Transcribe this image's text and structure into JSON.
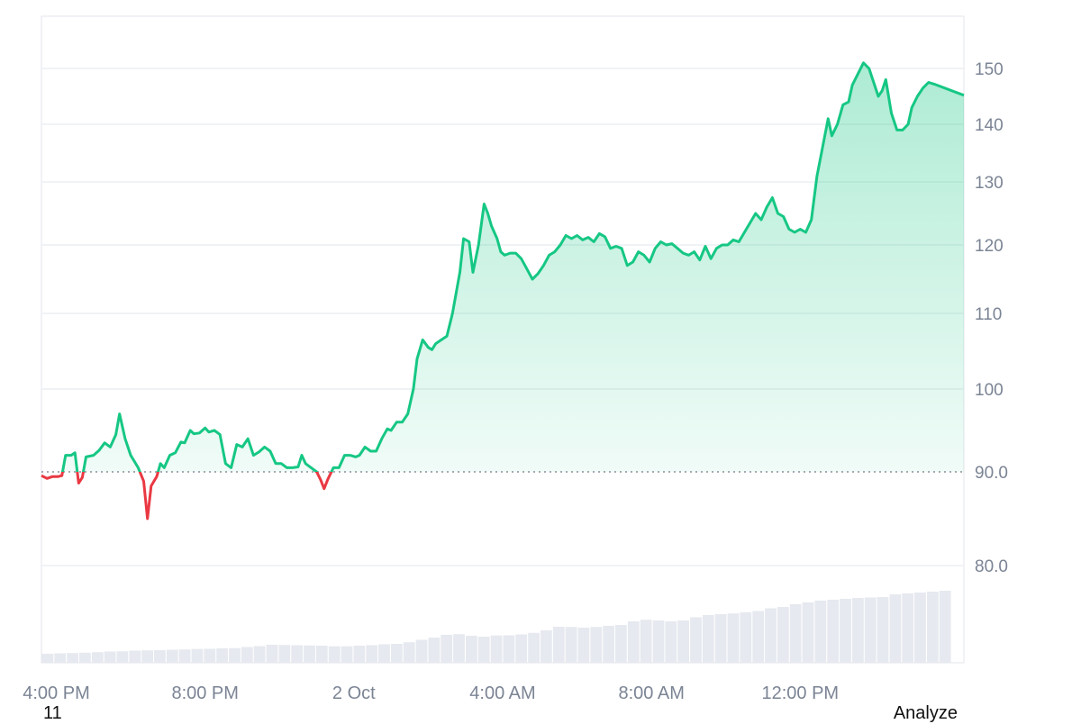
{
  "chart_data": {
    "type": "area",
    "reference_value": 90,
    "y_ticks": [
      "150",
      "140",
      "130",
      "120",
      "110",
      "100",
      "90.0",
      "80.0"
    ],
    "y_tick_values": [
      150,
      140,
      130,
      120,
      110,
      100,
      90,
      80
    ],
    "x_ticks": [
      "4:00 PM",
      "8:00 PM",
      "2 Oct",
      "4:00 AM",
      "8:00 AM",
      "12:00 PM"
    ],
    "x_tick_hours": [
      16,
      20,
      24,
      28,
      32,
      36
    ],
    "x_range_hours": [
      15.6,
      40.4
    ],
    "series": [
      {
        "price_points": [
          [
            15.6,
            89.6
          ],
          [
            15.75,
            89.3
          ],
          [
            15.9,
            89.5
          ],
          [
            16.05,
            89.5
          ],
          [
            16.15,
            89.6
          ],
          [
            16.25,
            92
          ],
          [
            16.4,
            92
          ],
          [
            16.5,
            92.3
          ],
          [
            16.6,
            88.8
          ],
          [
            16.7,
            89.4
          ],
          [
            16.8,
            91.8
          ],
          [
            17.0,
            92
          ],
          [
            17.15,
            92.6
          ],
          [
            17.3,
            93.5
          ],
          [
            17.45,
            93
          ],
          [
            17.6,
            94.5
          ],
          [
            17.7,
            97
          ],
          [
            17.85,
            94
          ],
          [
            18.0,
            92
          ],
          [
            18.2,
            90.5
          ],
          [
            18.35,
            89
          ],
          [
            18.45,
            85
          ],
          [
            18.55,
            88.5
          ],
          [
            18.7,
            89.5
          ],
          [
            18.8,
            91
          ],
          [
            18.9,
            90.5
          ],
          [
            19.05,
            92
          ],
          [
            19.2,
            92.3
          ],
          [
            19.35,
            93.6
          ],
          [
            19.45,
            93.5
          ],
          [
            19.6,
            95
          ],
          [
            19.7,
            94.6
          ],
          [
            19.85,
            94.7
          ],
          [
            20.0,
            95.3
          ],
          [
            20.1,
            94.8
          ],
          [
            20.25,
            95
          ],
          [
            20.4,
            94.5
          ],
          [
            20.55,
            91
          ],
          [
            20.7,
            90.5
          ],
          [
            20.85,
            93.3
          ],
          [
            21.0,
            93
          ],
          [
            21.15,
            94
          ],
          [
            21.3,
            92
          ],
          [
            21.45,
            92.4
          ],
          [
            21.6,
            93
          ],
          [
            21.75,
            92.5
          ],
          [
            21.9,
            91
          ],
          [
            22.05,
            91
          ],
          [
            22.2,
            90.5
          ],
          [
            22.35,
            90.5
          ],
          [
            22.5,
            90.6
          ],
          [
            22.6,
            92
          ],
          [
            22.7,
            91
          ],
          [
            22.85,
            90.5
          ],
          [
            23.0,
            90
          ],
          [
            23.1,
            89.2
          ],
          [
            23.2,
            88.2
          ],
          [
            23.3,
            89.2
          ],
          [
            23.45,
            90.5
          ],
          [
            23.6,
            90.5
          ],
          [
            23.75,
            92
          ],
          [
            23.9,
            92
          ],
          [
            24.05,
            91.8
          ],
          [
            24.15,
            92
          ],
          [
            24.3,
            93
          ],
          [
            24.45,
            92.5
          ],
          [
            24.6,
            92.5
          ],
          [
            24.75,
            94
          ],
          [
            24.9,
            95.2
          ],
          [
            25.0,
            95
          ],
          [
            25.15,
            96
          ],
          [
            25.3,
            96
          ],
          [
            25.45,
            97
          ],
          [
            25.6,
            100
          ],
          [
            25.7,
            104
          ],
          [
            25.85,
            106.5
          ],
          [
            26.0,
            105.5
          ],
          [
            26.1,
            105.2
          ],
          [
            26.2,
            106
          ],
          [
            26.35,
            106.5
          ],
          [
            26.5,
            107
          ],
          [
            26.65,
            110
          ],
          [
            26.75,
            113
          ],
          [
            26.85,
            116
          ],
          [
            26.95,
            121
          ],
          [
            27.1,
            120.5
          ],
          [
            27.2,
            116
          ],
          [
            27.35,
            120
          ],
          [
            27.5,
            126.5
          ],
          [
            27.6,
            125
          ],
          [
            27.7,
            123
          ],
          [
            27.85,
            121
          ],
          [
            27.95,
            119
          ],
          [
            28.05,
            118.5
          ],
          [
            28.2,
            118.8
          ],
          [
            28.35,
            118.8
          ],
          [
            28.5,
            118
          ],
          [
            28.6,
            117
          ],
          [
            28.7,
            116
          ],
          [
            28.8,
            115
          ],
          [
            28.95,
            115.8
          ],
          [
            29.1,
            117
          ],
          [
            29.25,
            118.5
          ],
          [
            29.4,
            119
          ],
          [
            29.55,
            120
          ],
          [
            29.7,
            121.5
          ],
          [
            29.85,
            121
          ],
          [
            30.0,
            121.5
          ],
          [
            30.15,
            120.8
          ],
          [
            30.3,
            121.2
          ],
          [
            30.45,
            120.5
          ],
          [
            30.6,
            121.8
          ],
          [
            30.75,
            121.3
          ],
          [
            30.9,
            119.5
          ],
          [
            31.05,
            119.8
          ],
          [
            31.2,
            119.5
          ],
          [
            31.35,
            117
          ],
          [
            31.5,
            117.5
          ],
          [
            31.65,
            119
          ],
          [
            31.8,
            118.5
          ],
          [
            31.95,
            117.5
          ],
          [
            32.1,
            119.5
          ],
          [
            32.25,
            120.5
          ],
          [
            32.4,
            120
          ],
          [
            32.55,
            120.2
          ],
          [
            32.7,
            119.5
          ],
          [
            32.85,
            118.8
          ],
          [
            33.0,
            118.5
          ],
          [
            33.15,
            119
          ],
          [
            33.3,
            117.8
          ],
          [
            33.45,
            119.8
          ],
          [
            33.6,
            118
          ],
          [
            33.75,
            119.5
          ],
          [
            33.9,
            120
          ],
          [
            34.05,
            120
          ],
          [
            34.2,
            120.8
          ],
          [
            34.35,
            120.5
          ],
          [
            34.5,
            122
          ],
          [
            34.65,
            123.5
          ],
          [
            34.8,
            125
          ],
          [
            34.95,
            124
          ],
          [
            35.1,
            126
          ],
          [
            35.25,
            127.5
          ],
          [
            35.4,
            125
          ],
          [
            35.55,
            124.5
          ],
          [
            35.7,
            122.5
          ],
          [
            35.85,
            122
          ],
          [
            36.0,
            122.5
          ],
          [
            36.15,
            122
          ],
          [
            36.3,
            124
          ],
          [
            36.45,
            131
          ],
          [
            36.6,
            136
          ],
          [
            36.75,
            141
          ],
          [
            36.85,
            138
          ],
          [
            37.0,
            140
          ],
          [
            37.15,
            143.5
          ],
          [
            37.3,
            144
          ],
          [
            37.4,
            147
          ],
          [
            37.55,
            149
          ],
          [
            37.7,
            151
          ],
          [
            37.85,
            150
          ],
          [
            38.0,
            147
          ],
          [
            38.1,
            145
          ],
          [
            38.2,
            146
          ],
          [
            38.3,
            148
          ],
          [
            38.45,
            142
          ],
          [
            38.6,
            139
          ],
          [
            38.75,
            139
          ],
          [
            38.9,
            140
          ],
          [
            39.0,
            143
          ],
          [
            39.15,
            145
          ],
          [
            39.3,
            146.5
          ],
          [
            39.45,
            147.5
          ],
          [
            39.6,
            147.2
          ],
          [
            40.4,
            145.2
          ]
        ]
      }
    ],
    "volume": [
      0.1,
      0.105,
      0.108,
      0.112,
      0.118,
      0.125,
      0.128,
      0.135,
      0.138,
      0.14,
      0.145,
      0.148,
      0.153,
      0.155,
      0.16,
      0.162,
      0.175,
      0.185,
      0.2,
      0.198,
      0.195,
      0.192,
      0.19,
      0.183,
      0.183,
      0.19,
      0.195,
      0.205,
      0.21,
      0.228,
      0.255,
      0.28,
      0.31,
      0.318,
      0.3,
      0.29,
      0.303,
      0.305,
      0.315,
      0.332,
      0.36,
      0.4,
      0.398,
      0.39,
      0.398,
      0.41,
      0.42,
      0.46,
      0.478,
      0.47,
      0.46,
      0.47,
      0.505,
      0.53,
      0.54,
      0.548,
      0.56,
      0.575,
      0.605,
      0.62,
      0.65,
      0.67,
      0.69,
      0.7,
      0.71,
      0.72,
      0.725,
      0.73,
      0.76,
      0.77,
      0.78,
      0.79,
      0.8,
      0.0
    ],
    "colors": {
      "up": "#16c784",
      "down": "#ea3943",
      "fill_top": "#16c784",
      "volume": "#e6e9ef",
      "grid": "#eceff3",
      "reference": "#8a8f9a"
    }
  },
  "footer": {
    "left_text": "11",
    "right_text": "Analyze"
  }
}
